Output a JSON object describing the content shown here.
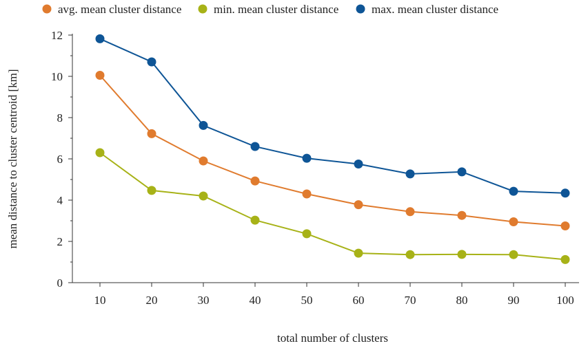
{
  "chart_data": {
    "type": "line",
    "title": "",
    "xlabel": "total number of clusters",
    "ylabel": "mean distance to cluster centroid [km]",
    "x": [
      10,
      20,
      30,
      40,
      50,
      60,
      70,
      80,
      90,
      100
    ],
    "x_tick_labels": [
      "10",
      "20",
      "30",
      "40",
      "50",
      "60",
      "70",
      "80",
      "90",
      "100"
    ],
    "ylim": [
      0,
      12
    ],
    "y_ticks": [
      0,
      2,
      4,
      6,
      8,
      10,
      12
    ],
    "y_tick_labels": [
      "0",
      "2",
      "4",
      "6",
      "8",
      "10",
      "12"
    ],
    "grid": false,
    "legend_position": "top",
    "series": [
      {
        "name": "avg. mean cluster distance",
        "color": "#e07b2e",
        "values": [
          10.05,
          7.22,
          5.9,
          4.93,
          4.3,
          3.78,
          3.44,
          3.26,
          2.95,
          2.75
        ]
      },
      {
        "name": "min. mean cluster distance",
        "color": "#a7b217",
        "values": [
          6.3,
          4.47,
          4.2,
          3.03,
          2.37,
          1.43,
          1.36,
          1.37,
          1.36,
          1.12
        ]
      },
      {
        "name": "max. mean cluster distance",
        "color": "#0e5596",
        "values": [
          11.82,
          10.7,
          7.62,
          6.6,
          6.03,
          5.75,
          5.27,
          5.37,
          4.43,
          4.34
        ]
      }
    ]
  }
}
